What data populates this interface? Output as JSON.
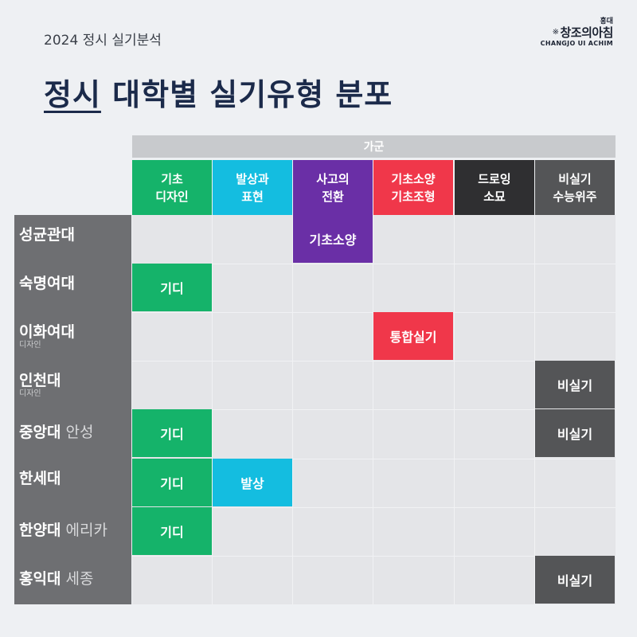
{
  "header": {
    "subtitle": "2024 정시 실기분석",
    "title_underlined": "정시",
    "title_rest": " 대학별 실기유형 분포"
  },
  "logo": {
    "top": "홍대",
    "main": "창조의아침",
    "star": "※",
    "sub": "CHANGJO UI ACHIM"
  },
  "table": {
    "group_label": "가군",
    "columns": [
      {
        "line1": "기초",
        "line2": "디자인",
        "color": "#15b36a"
      },
      {
        "line1": "발상과",
        "line2": "표현",
        "color": "#14bde0"
      },
      {
        "line1": "사고의",
        "line2": "전환",
        "color": "#6a2fa6"
      },
      {
        "line1": "기초소양",
        "line2": "기초조형",
        "color": "#f0374a"
      },
      {
        "line1": "드로잉",
        "line2": "소묘",
        "color": "#2f2f31"
      },
      {
        "line1": "비실기",
        "line2": "수능위주",
        "color": "#545557"
      }
    ],
    "rows": [
      {
        "name": "성균관대",
        "suffix": "",
        "note": ""
      },
      {
        "name": "숙명여대",
        "suffix": "",
        "note": ""
      },
      {
        "name": "이화여대",
        "suffix": "",
        "note": "디자인"
      },
      {
        "name": "인천대",
        "suffix": "",
        "note": "디자인"
      },
      {
        "name": "중앙대",
        "suffix": " 안성",
        "note": ""
      },
      {
        "name": "한세대",
        "suffix": "",
        "note": ""
      },
      {
        "name": "한양대",
        "suffix": " 에리카",
        "note": ""
      },
      {
        "name": "홍익대",
        "suffix": " 세종",
        "note": ""
      }
    ],
    "cells": [
      {
        "row": 0,
        "col": 2,
        "label": "기초소양"
      },
      {
        "row": 1,
        "col": 0,
        "label": "기디"
      },
      {
        "row": 2,
        "col": 3,
        "label": "통합실기"
      },
      {
        "row": 3,
        "col": 5,
        "label": "비실기"
      },
      {
        "row": 4,
        "col": 0,
        "label": "기디"
      },
      {
        "row": 4,
        "col": 5,
        "label": "비실기"
      },
      {
        "row": 5,
        "col": 0,
        "label": "기디"
      },
      {
        "row": 5,
        "col": 1,
        "label": "발상"
      },
      {
        "row": 6,
        "col": 0,
        "label": "기디"
      },
      {
        "row": 7,
        "col": 5,
        "label": "비실기"
      }
    ]
  }
}
